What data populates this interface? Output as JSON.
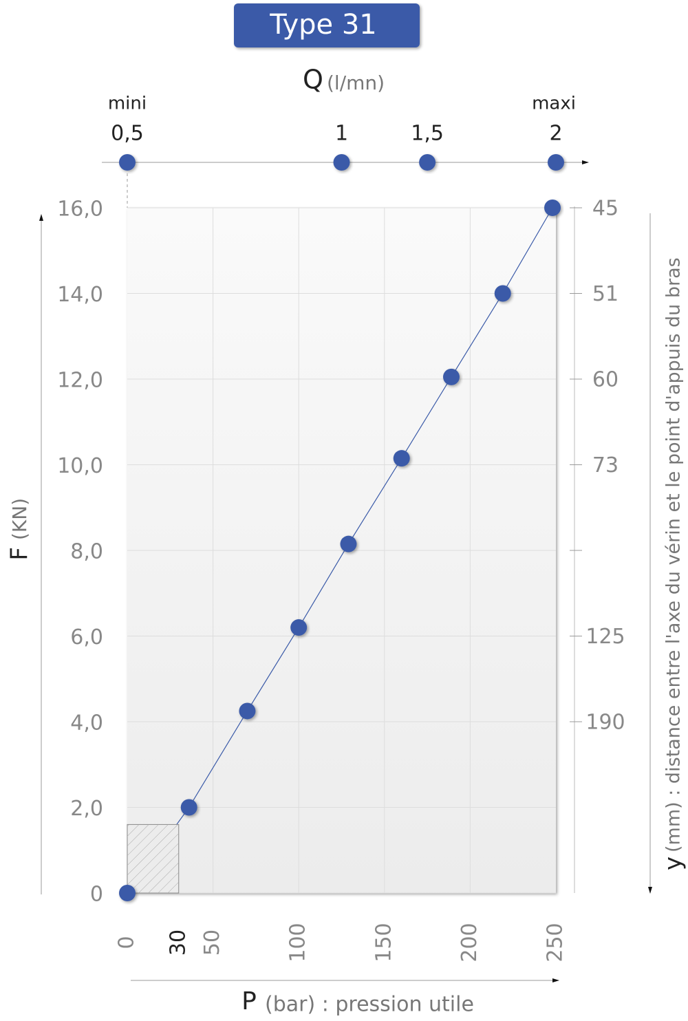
{
  "chart_data": {
    "type": "line",
    "title": "Type 31",
    "x_label": "P",
    "x_unit": "(bar) : pression utile",
    "y_label": "F",
    "y_unit": "(KN)",
    "xlim": [
      0,
      250
    ],
    "xticks": [
      0,
      30,
      50,
      100,
      150,
      200,
      250
    ],
    "ylim": [
      0,
      16
    ],
    "yticks": [
      0,
      {
        "value": 2,
        "label": "2,0"
      },
      {
        "value": 4,
        "label": "4,0"
      },
      {
        "value": 6,
        "label": "6,0"
      },
      {
        "value": 8,
        "label": "8,0"
      },
      {
        "value": 10,
        "label": "10,0"
      },
      {
        "value": 12,
        "label": "12,0"
      },
      {
        "value": 14,
        "label": "14,0"
      },
      {
        "value": 16,
        "label": "16,0"
      }
    ],
    "grid": true,
    "series": [
      {
        "name": "F",
        "color": "#3a5aa8",
        "x": [
          0,
          36,
          70,
          100,
          129,
          160,
          189,
          219,
          248
        ],
        "values": [
          0,
          2,
          4.25,
          6.2,
          8.15,
          10.15,
          12.05,
          14,
          16
        ]
      }
    ],
    "shaded_region": {
      "x": [
        0,
        30
      ],
      "y": [
        0,
        1.6
      ]
    },
    "flow": {
      "label": "Q",
      "unit": "(l/mn)",
      "end_labels": [
        "mini",
        "maxi"
      ],
      "x": [
        0,
        125,
        175,
        250
      ],
      "values": [
        0.5,
        1,
        1.5,
        2
      ],
      "value_labels": [
        "0,5",
        "1",
        "1,5",
        "2"
      ]
    },
    "distance": {
      "label": "y",
      "unit": "(mm) : distance entre l'axe du vérin et le point d'appuis du bras",
      "F": [
        16,
        14,
        12,
        10,
        8,
        6,
        4
      ],
      "values": [
        45,
        51,
        60,
        73,
        null,
        125,
        190
      ]
    }
  }
}
